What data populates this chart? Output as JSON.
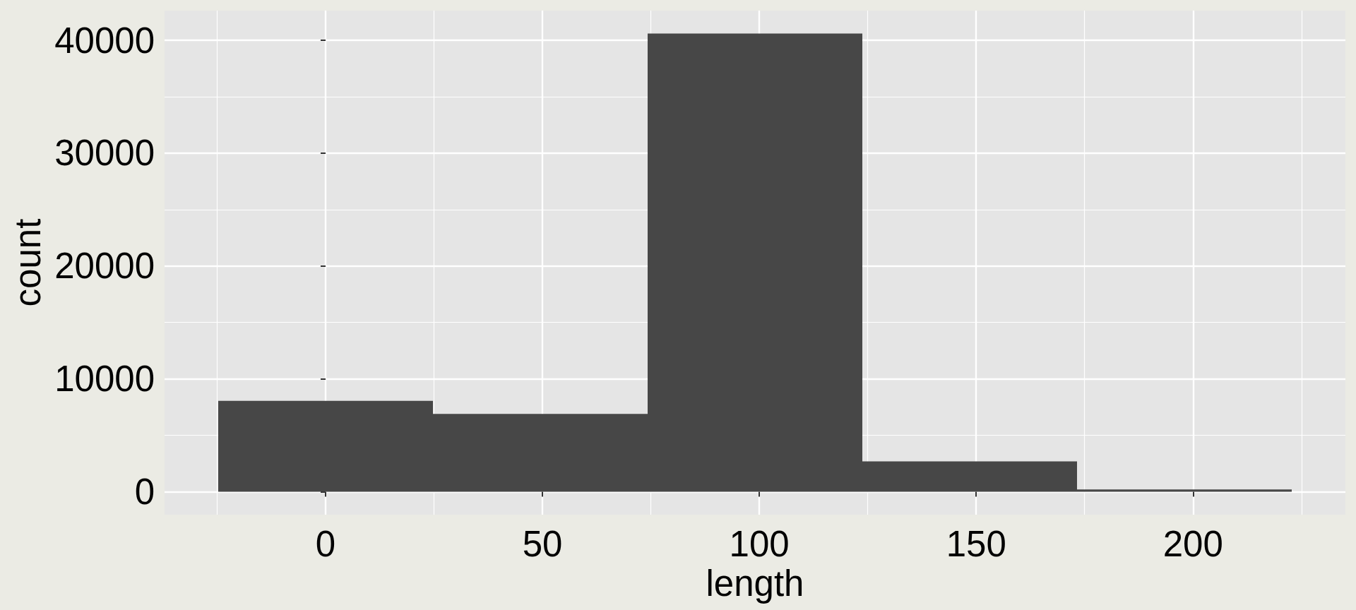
{
  "chart_data": {
    "type": "histogram",
    "xlabel": "length",
    "ylabel": "count",
    "bins": [
      -24.75,
      24.75,
      74.25,
      123.75,
      173.25,
      222.75
    ],
    "values": [
      8050,
      6900,
      40600,
      2700,
      200
    ],
    "color": "#474747",
    "xlim": [
      -37.125,
      235.125
    ],
    "ylim": [
      -2030,
      42630
    ],
    "xticks": [
      0,
      50,
      100,
      150,
      200
    ],
    "yticks": [
      0,
      10000,
      20000,
      30000,
      40000
    ],
    "grid": true
  }
}
